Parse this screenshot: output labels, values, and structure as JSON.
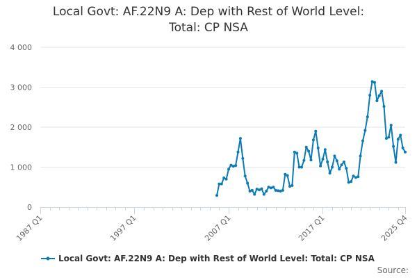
{
  "chart_data": {
    "type": "line",
    "title_line1": "Local Govt: AF.22N9 A: Dep with Rest of World Level:",
    "title_line2": "Total: CP NSA",
    "xlabel": "",
    "ylabel": "",
    "x_tick_labels": [
      "1987 Q1",
      "1997 Q1",
      "2007 Q1",
      "2017 Q1",
      "2025 Q4"
    ],
    "x_tick_years": [
      1987.0,
      1997.0,
      2007.0,
      2017.0,
      2025.75
    ],
    "xlim": [
      1987.0,
      2025.75
    ],
    "y_tick_labels": [
      "0",
      "1 000",
      "2 000",
      "3 000",
      "4 000"
    ],
    "y_tick_values": [
      0,
      1000,
      2000,
      3000,
      4000
    ],
    "ylim": [
      0,
      4000
    ],
    "grid": true,
    "legend_position": "bottom-left",
    "series": [
      {
        "name": "Local Govt: AF.22N9 A: Dep with Rest of World Level: Total: CP NSA",
        "color": "#0a7bb5",
        "x": [
          2005.75,
          2006.0,
          2006.25,
          2006.5,
          2006.75,
          2007.0,
          2007.25,
          2007.5,
          2007.75,
          2008.0,
          2008.25,
          2008.5,
          2008.75,
          2009.0,
          2009.25,
          2009.5,
          2009.75,
          2010.0,
          2010.25,
          2010.5,
          2010.75,
          2011.0,
          2011.25,
          2011.5,
          2011.75,
          2012.0,
          2012.25,
          2012.5,
          2012.75,
          2013.0,
          2013.25,
          2013.5,
          2013.75,
          2014.0,
          2014.25,
          2014.5,
          2014.75,
          2015.0,
          2015.25,
          2015.5,
          2015.75,
          2016.0,
          2016.25,
          2016.5,
          2016.75,
          2017.0,
          2017.25,
          2017.5,
          2017.75,
          2018.0,
          2018.25,
          2018.5,
          2018.75,
          2019.0,
          2019.25,
          2019.5,
          2019.75,
          2020.0,
          2020.25,
          2020.5,
          2020.75,
          2021.0,
          2021.25,
          2021.5,
          2021.75,
          2022.0,
          2022.25,
          2022.5,
          2022.75,
          2023.0,
          2023.25,
          2023.5,
          2023.75,
          2024.0,
          2024.25,
          2024.5,
          2024.75,
          2025.0,
          2025.25,
          2025.5,
          2025.75
        ],
        "values": [
          290,
          580,
          580,
          730,
          700,
          950,
          1050,
          1020,
          1040,
          1380,
          1720,
          1220,
          780,
          600,
          400,
          420,
          320,
          450,
          430,
          460,
          320,
          400,
          500,
          480,
          500,
          420,
          410,
          400,
          420,
          820,
          790,
          520,
          540,
          1380,
          1350,
          1000,
          1000,
          1170,
          1500,
          1400,
          1180,
          1680,
          1900,
          1480,
          1030,
          1200,
          1440,
          1130,
          850,
          1000,
          1280,
          1160,
          950,
          1060,
          1130,
          970,
          620,
          640,
          780,
          740,
          760,
          1280,
          1660,
          1920,
          2260,
          2800,
          3140,
          3120,
          2660,
          2790,
          2900,
          2520,
          1720,
          1750,
          2050,
          1520,
          1120,
          1700,
          1800,
          1480,
          1380
        ]
      }
    ]
  },
  "legend_label": "Local Govt: AF.22N9 A: Dep with Rest of World Level: Total: CP NSA",
  "source_label": "Source:"
}
